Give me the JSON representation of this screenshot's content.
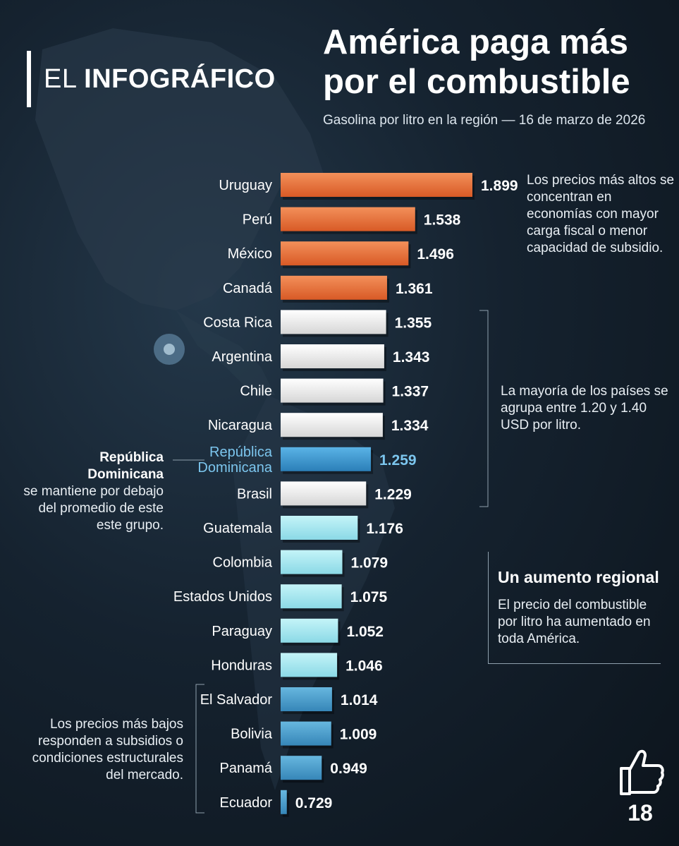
{
  "brand": {
    "prefix": "EL",
    "name": "INFOGRÁFICO"
  },
  "title": "América paga más por el combustible",
  "subtitle": "Gasolina por litro en la región — 16 de marzo de 2026",
  "colors": {
    "orange": "#e8703a",
    "white": "#eeeeee",
    "highlight": "#3d9bd3",
    "light_blue": "#a6e9f0",
    "blue": "#4a9fcc"
  },
  "chart_data": {
    "type": "bar",
    "orientation": "horizontal",
    "categories": [
      "Uruguay",
      "Perú",
      "México",
      "Canadá",
      "Costa Rica",
      "Argentina",
      "Chile",
      "Nicaragua",
      "República Dominicana",
      "Brasil",
      "Guatemala",
      "Colombia",
      "Estados Unidos",
      "Paraguay",
      "Honduras",
      "El Salvador",
      "Bolivia",
      "Panamá",
      "Ecuador"
    ],
    "values": [
      1.899,
      1.538,
      1.496,
      1.361,
      1.355,
      1.343,
      1.337,
      1.334,
      1.259,
      1.229,
      1.176,
      1.079,
      1.075,
      1.052,
      1.046,
      1.014,
      1.009,
      0.949,
      0.729
    ],
    "value_labels": [
      "1.899",
      "1.538",
      "1.496",
      "1.361",
      "1.355",
      "1.343",
      "1.337",
      "1.334",
      "1.259",
      "1.229",
      "1.176",
      "1.079",
      "1.075",
      "1.052",
      "1.046",
      "1.014",
      "1.009",
      "0.949",
      "0.729"
    ],
    "bar_colors": [
      "orange",
      "orange",
      "orange",
      "orange",
      "white",
      "white",
      "white",
      "white",
      "highlight",
      "white",
      "light_blue",
      "light_blue",
      "light_blue",
      "light_blue",
      "light_blue",
      "blue",
      "blue",
      "blue",
      "blue"
    ],
    "xlim": [
      0,
      1.9
    ],
    "highlighted_category": "República Dominicana",
    "category_label_lines": {
      "República Dominicana": [
        "República",
        "Dominicana"
      ]
    }
  },
  "annotations": {
    "high": "Los precios más altos se concentran en economías con mayor carga fiscal o menor capacidad de subsidio.",
    "middle": "La mayoría de los países se agrupa entre 1.20 y 1.40 USD por litro.",
    "dr_strong": "República Dominicana",
    "dr_text": "se mantiene por debajo del promedio de este este grupo.",
    "low": "Los precios más bajos responden a subsidios o condiciones estructurales del mercado.",
    "callout_title": "Un aumento regional",
    "callout_body": "El precio del combustible por litro ha aumentado en toda América."
  },
  "social": {
    "like_icon": "thumbs-up-icon",
    "like_count": "18"
  }
}
